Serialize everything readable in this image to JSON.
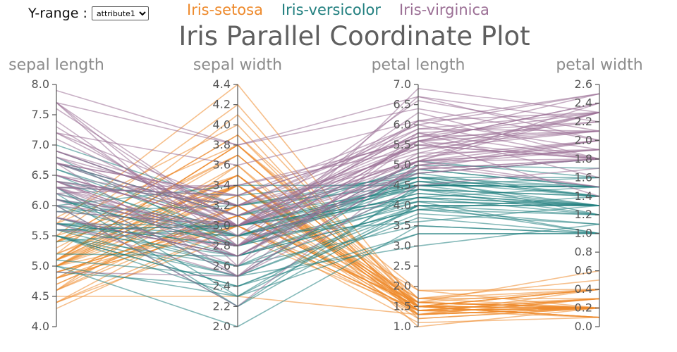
{
  "controls": {
    "y_range_label": "Y-range :",
    "y_range_selected": "attribute1"
  },
  "legend": [
    {
      "label": "Iris-setosa",
      "color": "#ee8a2c"
    },
    {
      "label": "Iris-versicolor",
      "color": "#217f7f"
    },
    {
      "label": "Iris-virginica",
      "color": "#9b6f95"
    }
  ],
  "chart_data": {
    "type": "parallel-coordinates",
    "title": "Iris Parallel Coordinate Plot",
    "axes": [
      {
        "label": "sepal length",
        "range": [
          4.0,
          8.0
        ],
        "ticks": [
          "4.0",
          "4.5",
          "5.0",
          "5.5",
          "6.0",
          "6.5",
          "7.0",
          "7.5",
          "8.0"
        ]
      },
      {
        "label": "sepal width",
        "range": [
          2.0,
          4.4
        ],
        "ticks": [
          "2.0",
          "2.2",
          "2.4",
          "2.6",
          "2.8",
          "3.0",
          "3.2",
          "3.4",
          "3.6",
          "3.8",
          "4.0",
          "4.2",
          "4.4"
        ]
      },
      {
        "label": "petal length",
        "range": [
          1.0,
          7.0
        ],
        "ticks": [
          "1.0",
          "1.5",
          "2.0",
          "2.5",
          "3.0",
          "3.5",
          "4.0",
          "4.5",
          "5.0",
          "5.5",
          "6.0",
          "6.5",
          "7.0"
        ]
      },
      {
        "label": "petal width",
        "range": [
          0.0,
          2.6
        ],
        "ticks": [
          "0.0",
          "0.2",
          "0.4",
          "0.6",
          "0.8",
          "1.0",
          "1.2",
          "1.4",
          "1.6",
          "1.8",
          "2.0",
          "2.2",
          "2.4",
          "2.6"
        ]
      }
    ],
    "series": [
      {
        "name": "Iris-setosa",
        "color": "#ee8a2c",
        "rows": [
          [
            5.1,
            3.5,
            1.4,
            0.2
          ],
          [
            4.9,
            3.0,
            1.4,
            0.2
          ],
          [
            4.7,
            3.2,
            1.3,
            0.2
          ],
          [
            4.6,
            3.1,
            1.5,
            0.2
          ],
          [
            5.0,
            3.6,
            1.4,
            0.2
          ],
          [
            5.4,
            3.9,
            1.7,
            0.4
          ],
          [
            4.6,
            3.4,
            1.4,
            0.3
          ],
          [
            5.0,
            3.4,
            1.5,
            0.2
          ],
          [
            4.4,
            2.9,
            1.4,
            0.2
          ],
          [
            4.9,
            3.1,
            1.5,
            0.1
          ],
          [
            5.4,
            3.7,
            1.5,
            0.2
          ],
          [
            4.8,
            3.4,
            1.6,
            0.2
          ],
          [
            4.8,
            3.0,
            1.4,
            0.1
          ],
          [
            4.3,
            3.0,
            1.1,
            0.1
          ],
          [
            5.8,
            4.0,
            1.2,
            0.2
          ],
          [
            5.7,
            4.4,
            1.5,
            0.4
          ],
          [
            5.4,
            3.9,
            1.3,
            0.4
          ],
          [
            5.1,
            3.5,
            1.4,
            0.3
          ],
          [
            5.7,
            3.8,
            1.7,
            0.3
          ],
          [
            5.1,
            3.8,
            1.5,
            0.3
          ],
          [
            5.4,
            3.4,
            1.7,
            0.2
          ],
          [
            5.1,
            3.7,
            1.5,
            0.4
          ],
          [
            4.6,
            3.6,
            1.0,
            0.2
          ],
          [
            5.1,
            3.3,
            1.7,
            0.5
          ],
          [
            4.8,
            3.4,
            1.9,
            0.2
          ],
          [
            5.0,
            3.0,
            1.6,
            0.2
          ],
          [
            5.0,
            3.4,
            1.6,
            0.4
          ],
          [
            5.2,
            3.5,
            1.5,
            0.2
          ],
          [
            5.2,
            3.4,
            1.4,
            0.2
          ],
          [
            4.7,
            3.2,
            1.6,
            0.2
          ],
          [
            4.8,
            3.1,
            1.6,
            0.2
          ],
          [
            5.4,
            3.4,
            1.5,
            0.4
          ],
          [
            5.2,
            4.1,
            1.5,
            0.1
          ],
          [
            5.5,
            4.2,
            1.4,
            0.2
          ],
          [
            4.9,
            3.1,
            1.5,
            0.1
          ],
          [
            5.0,
            3.2,
            1.2,
            0.2
          ],
          [
            5.5,
            3.5,
            1.3,
            0.2
          ],
          [
            4.9,
            3.1,
            1.5,
            0.1
          ],
          [
            4.4,
            3.0,
            1.3,
            0.2
          ],
          [
            5.1,
            3.4,
            1.5,
            0.2
          ],
          [
            5.0,
            3.5,
            1.3,
            0.3
          ],
          [
            4.5,
            2.3,
            1.3,
            0.3
          ],
          [
            4.4,
            3.2,
            1.3,
            0.2
          ],
          [
            5.0,
            3.5,
            1.6,
            0.6
          ],
          [
            5.1,
            3.8,
            1.9,
            0.4
          ],
          [
            4.8,
            3.0,
            1.4,
            0.3
          ],
          [
            5.1,
            3.8,
            1.6,
            0.2
          ],
          [
            4.6,
            3.2,
            1.4,
            0.2
          ],
          [
            5.3,
            3.7,
            1.5,
            0.2
          ],
          [
            5.0,
            3.3,
            1.4,
            0.2
          ]
        ]
      },
      {
        "name": "Iris-versicolor",
        "color": "#217f7f",
        "rows": [
          [
            7.0,
            3.2,
            4.7,
            1.4
          ],
          [
            6.4,
            3.2,
            4.5,
            1.5
          ],
          [
            6.9,
            3.1,
            4.9,
            1.5
          ],
          [
            5.5,
            2.3,
            4.0,
            1.3
          ],
          [
            6.5,
            2.8,
            4.6,
            1.5
          ],
          [
            5.7,
            2.8,
            4.5,
            1.3
          ],
          [
            6.3,
            3.3,
            4.7,
            1.6
          ],
          [
            4.9,
            2.4,
            3.3,
            1.0
          ],
          [
            6.6,
            2.9,
            4.6,
            1.3
          ],
          [
            5.2,
            2.7,
            3.9,
            1.4
          ],
          [
            5.0,
            2.0,
            3.5,
            1.0
          ],
          [
            5.9,
            3.0,
            4.2,
            1.5
          ],
          [
            6.0,
            2.2,
            4.0,
            1.0
          ],
          [
            6.1,
            2.9,
            4.7,
            1.4
          ],
          [
            5.6,
            2.9,
            3.6,
            1.3
          ],
          [
            6.7,
            3.1,
            4.4,
            1.4
          ],
          [
            5.6,
            3.0,
            4.5,
            1.5
          ],
          [
            5.8,
            2.7,
            4.1,
            1.0
          ],
          [
            6.2,
            2.2,
            4.5,
            1.5
          ],
          [
            5.6,
            2.5,
            3.9,
            1.1
          ],
          [
            5.9,
            3.2,
            4.8,
            1.8
          ],
          [
            6.1,
            2.8,
            4.0,
            1.3
          ],
          [
            6.3,
            2.5,
            4.9,
            1.5
          ],
          [
            6.1,
            2.8,
            4.7,
            1.2
          ],
          [
            6.4,
            2.9,
            4.3,
            1.3
          ],
          [
            6.6,
            3.0,
            4.4,
            1.4
          ],
          [
            6.8,
            2.8,
            4.8,
            1.4
          ],
          [
            6.7,
            3.0,
            5.0,
            1.7
          ],
          [
            6.0,
            2.9,
            4.5,
            1.5
          ],
          [
            5.7,
            2.6,
            3.5,
            1.0
          ],
          [
            5.5,
            2.4,
            3.8,
            1.1
          ],
          [
            5.5,
            2.4,
            3.7,
            1.0
          ],
          [
            5.8,
            2.7,
            3.9,
            1.2
          ],
          [
            6.0,
            2.7,
            5.1,
            1.6
          ],
          [
            5.4,
            3.0,
            4.5,
            1.5
          ],
          [
            6.0,
            3.4,
            4.5,
            1.6
          ],
          [
            6.7,
            3.1,
            4.7,
            1.5
          ],
          [
            6.3,
            2.3,
            4.4,
            1.3
          ],
          [
            5.6,
            3.0,
            4.1,
            1.3
          ],
          [
            5.5,
            2.5,
            4.0,
            1.3
          ],
          [
            5.5,
            2.6,
            4.4,
            1.2
          ],
          [
            6.1,
            3.0,
            4.6,
            1.4
          ],
          [
            5.8,
            2.6,
            4.0,
            1.2
          ],
          [
            5.0,
            2.3,
            3.3,
            1.0
          ],
          [
            5.6,
            2.7,
            4.2,
            1.3
          ],
          [
            5.7,
            3.0,
            4.2,
            1.2
          ],
          [
            5.7,
            2.9,
            4.2,
            1.3
          ],
          [
            6.2,
            2.9,
            4.3,
            1.3
          ],
          [
            5.1,
            2.5,
            3.0,
            1.1
          ],
          [
            5.7,
            2.8,
            4.1,
            1.3
          ]
        ]
      },
      {
        "name": "Iris-virginica",
        "color": "#9b6f95",
        "rows": [
          [
            6.3,
            3.3,
            6.0,
            2.5
          ],
          [
            5.8,
            2.7,
            5.1,
            1.9
          ],
          [
            7.1,
            3.0,
            5.9,
            2.1
          ],
          [
            6.3,
            2.9,
            5.6,
            1.8
          ],
          [
            6.5,
            3.0,
            5.8,
            2.2
          ],
          [
            7.6,
            3.0,
            6.6,
            2.1
          ],
          [
            4.9,
            2.5,
            4.5,
            1.7
          ],
          [
            7.3,
            2.9,
            6.3,
            1.8
          ],
          [
            6.7,
            2.5,
            5.8,
            1.8
          ],
          [
            7.2,
            3.6,
            6.1,
            2.5
          ],
          [
            6.5,
            3.2,
            5.1,
            2.0
          ],
          [
            6.4,
            2.7,
            5.3,
            1.9
          ],
          [
            6.8,
            3.0,
            5.5,
            2.1
          ],
          [
            5.7,
            2.5,
            5.0,
            2.0
          ],
          [
            5.8,
            2.8,
            5.1,
            2.4
          ],
          [
            6.4,
            3.2,
            5.3,
            2.3
          ],
          [
            6.5,
            3.0,
            5.5,
            1.8
          ],
          [
            7.7,
            3.8,
            6.7,
            2.2
          ],
          [
            7.7,
            2.6,
            6.9,
            2.3
          ],
          [
            6.0,
            2.2,
            5.0,
            1.5
          ],
          [
            6.9,
            3.2,
            5.7,
            2.3
          ],
          [
            5.6,
            2.8,
            4.9,
            2.0
          ],
          [
            7.7,
            2.8,
            6.7,
            2.0
          ],
          [
            6.3,
            2.7,
            4.9,
            1.8
          ],
          [
            6.7,
            3.3,
            5.7,
            2.1
          ],
          [
            7.2,
            3.2,
            6.0,
            1.8
          ],
          [
            6.2,
            2.8,
            4.8,
            1.8
          ],
          [
            6.1,
            3.0,
            4.9,
            1.8
          ],
          [
            6.4,
            2.8,
            5.6,
            2.1
          ],
          [
            7.2,
            3.0,
            5.8,
            1.6
          ],
          [
            7.4,
            2.8,
            6.1,
            1.9
          ],
          [
            7.9,
            3.8,
            6.4,
            2.0
          ],
          [
            6.4,
            2.8,
            5.6,
            2.2
          ],
          [
            6.3,
            2.8,
            5.1,
            1.5
          ],
          [
            6.1,
            2.6,
            5.6,
            1.4
          ],
          [
            7.7,
            3.0,
            6.1,
            2.3
          ],
          [
            6.3,
            3.4,
            5.6,
            2.4
          ],
          [
            6.4,
            3.1,
            5.5,
            1.8
          ],
          [
            6.0,
            3.0,
            4.8,
            1.8
          ],
          [
            6.9,
            3.1,
            5.4,
            2.1
          ],
          [
            6.7,
            3.1,
            5.6,
            2.4
          ],
          [
            6.9,
            3.1,
            5.1,
            2.3
          ],
          [
            5.8,
            2.7,
            5.1,
            1.9
          ],
          [
            6.8,
            3.2,
            5.9,
            2.3
          ],
          [
            6.7,
            3.3,
            5.7,
            2.5
          ],
          [
            6.7,
            3.0,
            5.2,
            2.3
          ],
          [
            6.3,
            2.5,
            5.0,
            1.9
          ],
          [
            6.5,
            3.0,
            5.2,
            2.0
          ],
          [
            6.2,
            3.4,
            5.4,
            2.3
          ],
          [
            5.9,
            3.0,
            5.1,
            1.8
          ]
        ]
      }
    ]
  }
}
